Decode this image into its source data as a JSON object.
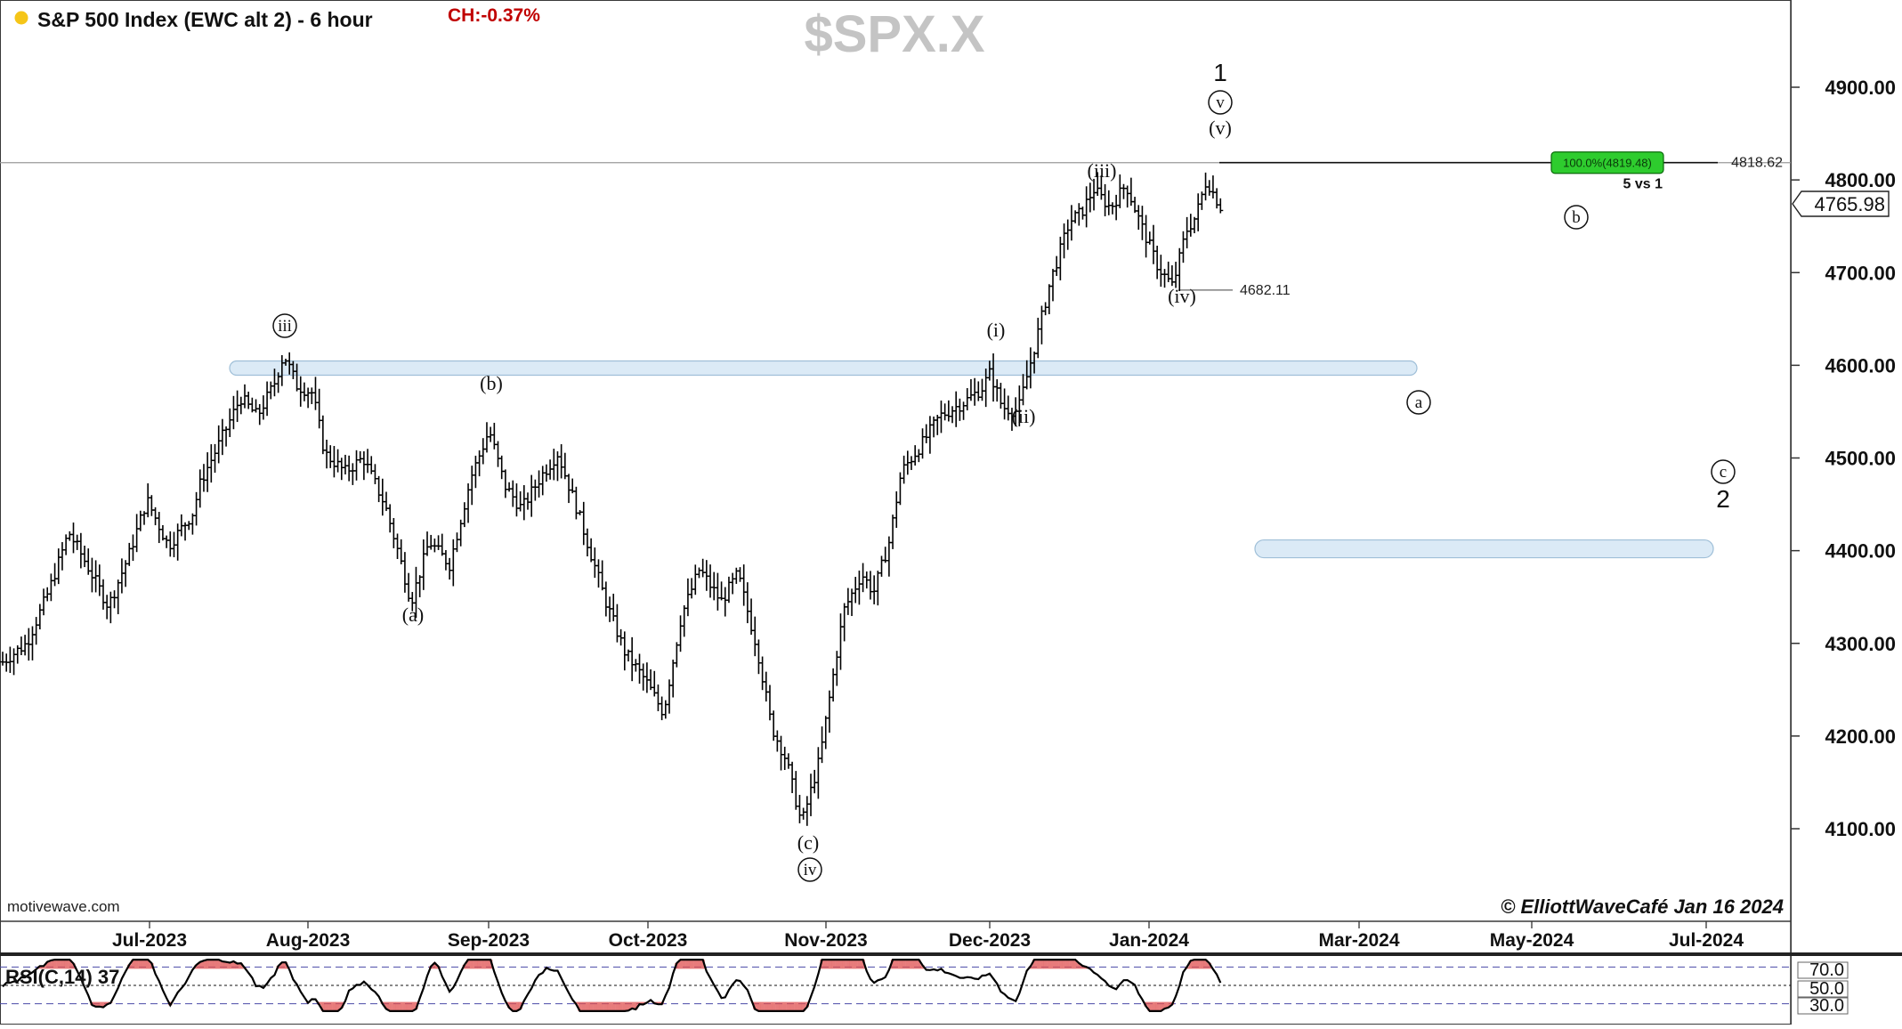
{
  "header": {
    "dot_color": "#f5c518",
    "title": "S&P 500 Index (EWC alt 2) - 6 hour",
    "change": "CH:-0.37%",
    "change_color": "#c00000",
    "watermark_symbol": "$SPX.X"
  },
  "footer": {
    "source": "motivewave.com",
    "copyright": "© ElliottWaveCafé Jan 16 2024"
  },
  "chart_data": {
    "type": "ohlc",
    "title": "S&P 500 Index (EWC alt 2) - 6 hour",
    "price_axis": {
      "ticks": [
        4100,
        4200,
        4300,
        4400,
        4500,
        4600,
        4700,
        4800,
        4900
      ],
      "tick_labels": [
        "4100.00",
        "4200.00",
        "4300.00",
        "4400.00",
        "4500.00",
        "4600.00",
        "4700.00",
        "4800.00",
        "4900.00"
      ],
      "range": [
        4030,
        4985
      ],
      "current_price": "4765.98"
    },
    "time_axis": {
      "labels": [
        "Jul-2023",
        "Aug-2023",
        "Sep-2023",
        "Oct-2023",
        "Nov-2023",
        "Dec-2023",
        "Jan-2024",
        "Mar-2024",
        "May-2024",
        "Jul-2024"
      ]
    },
    "price_path": [
      [
        0,
        4280
      ],
      [
        20,
        4300
      ],
      [
        38,
        4355
      ],
      [
        55,
        4420
      ],
      [
        70,
        4385
      ],
      [
        88,
        4340
      ],
      [
        105,
        4395
      ],
      [
        120,
        4455
      ],
      [
        138,
        4405
      ],
      [
        158,
        4440
      ],
      [
        165,
        4475
      ],
      [
        180,
        4515
      ],
      [
        198,
        4565
      ],
      [
        212,
        4545
      ],
      [
        226,
        4580
      ],
      [
        234,
        4612
      ],
      [
        245,
        4578
      ],
      [
        258,
        4570
      ],
      [
        268,
        4505
      ],
      [
        285,
        4485
      ],
      [
        300,
        4500
      ],
      [
        318,
        4450
      ],
      [
        330,
        4395
      ],
      [
        340,
        4345
      ],
      [
        355,
        4410
      ],
      [
        372,
        4385
      ],
      [
        390,
        4480
      ],
      [
        405,
        4530
      ],
      [
        418,
        4470
      ],
      [
        432,
        4445
      ],
      [
        448,
        4480
      ],
      [
        462,
        4505
      ],
      [
        478,
        4445
      ],
      [
        490,
        4395
      ],
      [
        502,
        4345
      ],
      [
        518,
        4290
      ],
      [
        535,
        4260
      ],
      [
        550,
        4225
      ],
      [
        565,
        4330
      ],
      [
        580,
        4380
      ],
      [
        598,
        4345
      ],
      [
        612,
        4375
      ],
      [
        628,
        4295
      ],
      [
        640,
        4210
      ],
      [
        652,
        4175
      ],
      [
        665,
        4105
      ],
      [
        680,
        4175
      ],
      [
        690,
        4255
      ],
      [
        700,
        4335
      ],
      [
        715,
        4375
      ],
      [
        725,
        4355
      ],
      [
        738,
        4410
      ],
      [
        748,
        4485
      ],
      [
        765,
        4515
      ],
      [
        780,
        4545
      ],
      [
        800,
        4560
      ],
      [
        815,
        4575
      ],
      [
        822,
        4592
      ],
      [
        832,
        4555
      ],
      [
        845,
        4550
      ],
      [
        858,
        4615
      ],
      [
        872,
        4690
      ],
      [
        888,
        4755
      ],
      [
        898,
        4765
      ],
      [
        908,
        4790
      ],
      [
        922,
        4770
      ],
      [
        935,
        4795
      ],
      [
        948,
        4750
      ],
      [
        962,
        4705
      ],
      [
        974,
        4685
      ],
      [
        985,
        4745
      ],
      [
        993,
        4760
      ],
      [
        1002,
        4800
      ],
      [
        1010,
        4780
      ],
      [
        1016,
        4766
      ]
    ],
    "horizontal_line": {
      "price": 4818.62,
      "label": "4818.62"
    },
    "fib_target": {
      "label": "100.0%(4819.48)",
      "note": "5 vs 1",
      "color": "#2ecc2e"
    },
    "low_marker": {
      "price": 4682.11,
      "label": "4682.11"
    },
    "zones": [
      {
        "price": 4597
      },
      {
        "price": 4402
      }
    ],
    "wave_labels": [
      {
        "text": "iii",
        "circled": true
      },
      {
        "text": "(a)",
        "circled": false
      },
      {
        "text": "(b)",
        "circled": false
      },
      {
        "text": "(c)",
        "circled": false
      },
      {
        "text": "iv",
        "circled": true
      },
      {
        "text": "(i)",
        "circled": false
      },
      {
        "text": "(ii)",
        "circled": false
      },
      {
        "text": "(iii)",
        "circled": false
      },
      {
        "text": "(iv)",
        "circled": false
      },
      {
        "text": "(v)",
        "circled": false
      },
      {
        "text": "v",
        "circled": true
      },
      {
        "text": "1",
        "circled": false
      },
      {
        "text": "a",
        "circled": true
      },
      {
        "text": "b",
        "circled": true
      },
      {
        "text": "c",
        "circled": true
      },
      {
        "text": "2",
        "circled": false
      }
    ],
    "rsi": {
      "label": "RSI(C,14) 37",
      "levels": [
        "70.0",
        "50.0",
        "30.0"
      ],
      "overbought_color": "#e05050",
      "oversold_color": "#e05050"
    }
  }
}
